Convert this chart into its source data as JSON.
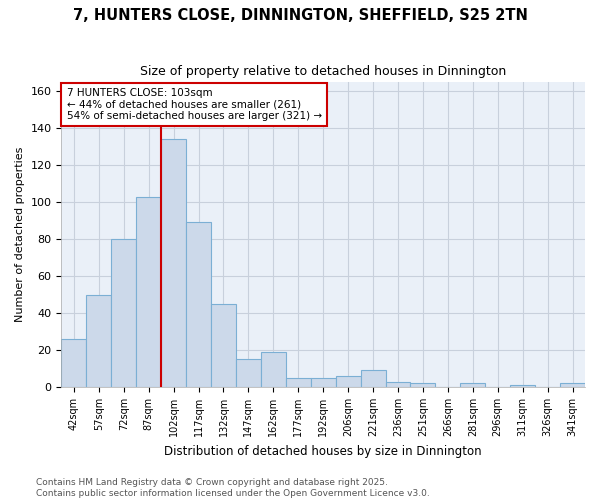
{
  "title": "7, HUNTERS CLOSE, DINNINGTON, SHEFFIELD, S25 2TN",
  "subtitle": "Size of property relative to detached houses in Dinnington",
  "xlabel": "Distribution of detached houses by size in Dinnington",
  "ylabel": "Number of detached properties",
  "bins": [
    "42sqm",
    "57sqm",
    "72sqm",
    "87sqm",
    "102sqm",
    "117sqm",
    "132sqm",
    "147sqm",
    "162sqm",
    "177sqm",
    "192sqm",
    "206sqm",
    "221sqm",
    "236sqm",
    "251sqm",
    "266sqm",
    "281sqm",
    "296sqm",
    "311sqm",
    "326sqm",
    "341sqm"
  ],
  "values": [
    26,
    50,
    80,
    103,
    134,
    89,
    45,
    15,
    19,
    5,
    5,
    6,
    9,
    3,
    2,
    0,
    2,
    0,
    1,
    0,
    2
  ],
  "bar_color": "#ccd9ea",
  "bar_edge_color": "#7bafd4",
  "vline_x": 3.5,
  "vline_color": "#cc0000",
  "annotation_text": "7 HUNTERS CLOSE: 103sqm\n← 44% of detached houses are smaller (261)\n54% of semi-detached houses are larger (321) →",
  "annotation_box_color": "#cc0000",
  "annotation_fontsize": 7.5,
  "ylim": [
    0,
    165
  ],
  "yticks": [
    0,
    20,
    40,
    60,
    80,
    100,
    120,
    140,
    160
  ],
  "footer": "Contains HM Land Registry data © Crown copyright and database right 2025.\nContains public sector information licensed under the Open Government Licence v3.0.",
  "plot_bg_color": "#eaf0f8",
  "fig_bg_color": "#ffffff",
  "grid_color": "#c8d0dc",
  "title_fontsize": 10.5,
  "subtitle_fontsize": 9
}
